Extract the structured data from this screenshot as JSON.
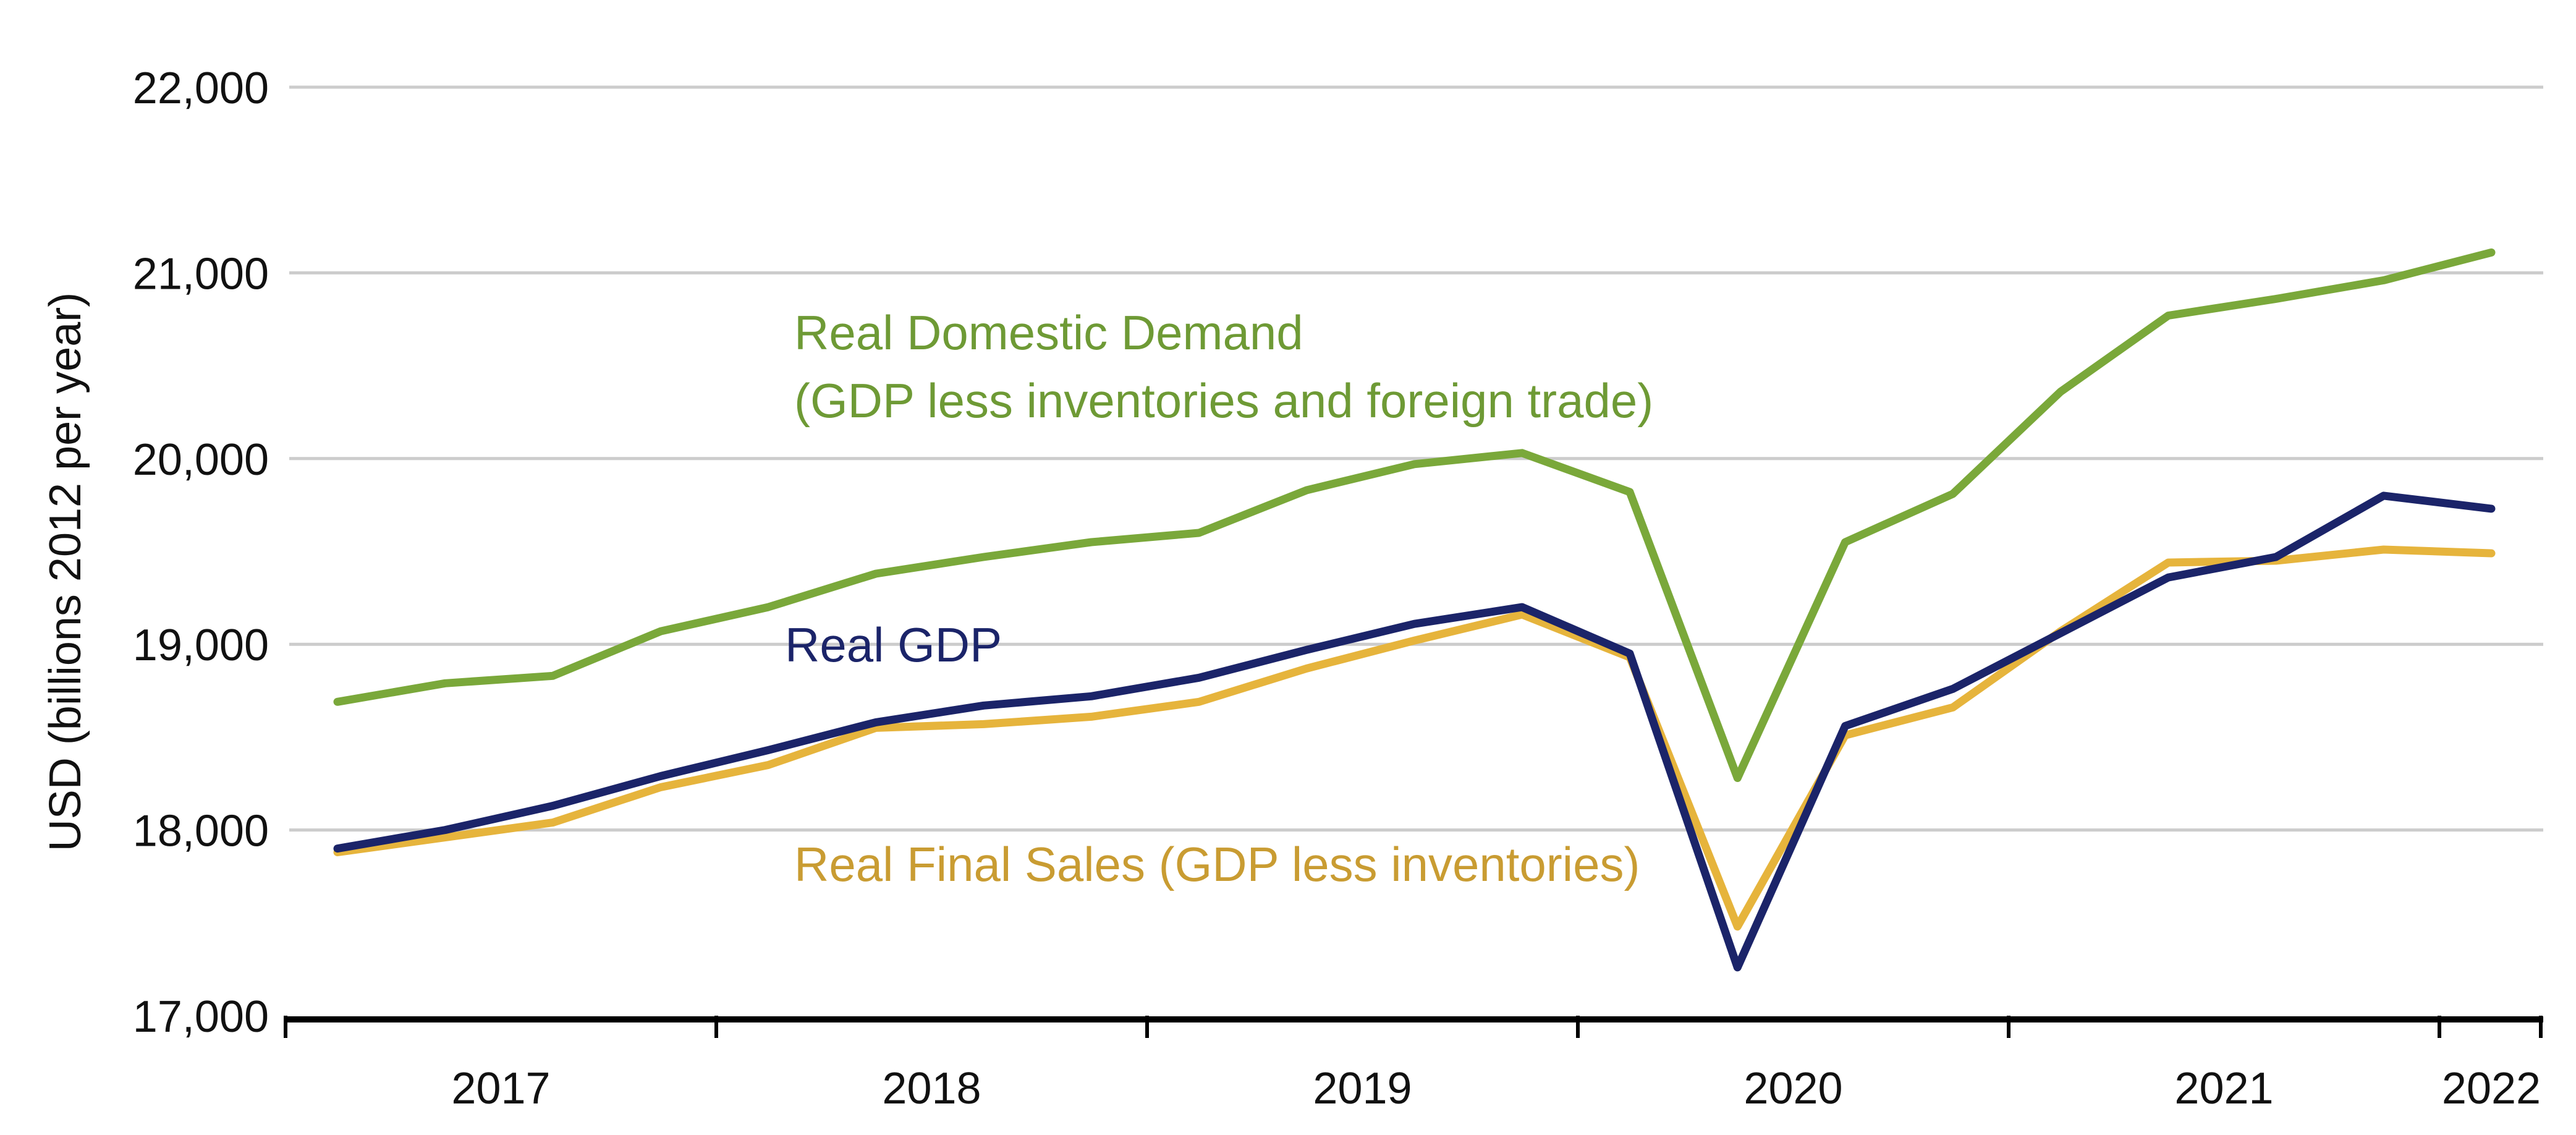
{
  "chart_data": {
    "type": "line",
    "title": "",
    "xlabel": "",
    "ylabel": "USD (billions 2012 per year)",
    "ylim": [
      17000,
      22000
    ],
    "yticks": [
      17000,
      18000,
      19000,
      20000,
      21000,
      22000
    ],
    "ytick_labels": [
      "17,000",
      "18,000",
      "19,000",
      "20,000",
      "21,000",
      "22,000"
    ],
    "grid": true,
    "x": [
      "2016Q4",
      "2017Q1",
      "2017Q2",
      "2017Q3",
      "2017Q4",
      "2018Q1",
      "2018Q2",
      "2018Q3",
      "2018Q4",
      "2019Q1",
      "2019Q2",
      "2019Q3",
      "2019Q4",
      "2020Q1",
      "2020Q2",
      "2020Q3",
      "2020Q4",
      "2021Q1",
      "2021Q2",
      "2021Q3",
      "2021Q4"
    ],
    "xtick_labels": [
      "2017",
      "2018",
      "2019",
      "2020",
      "2021",
      "2022"
    ],
    "series": [
      {
        "name": "Real Domestic Demand",
        "annotation": [
          "Real Domestic Demand",
          "(GDP less inventories and foreign trade)"
        ],
        "color": "#7aa83a",
        "text_color": "#6e9a35",
        "values": [
          18690,
          18790,
          18830,
          19070,
          19200,
          19380,
          19470,
          19550,
          19600,
          19830,
          19970,
          20030,
          19820,
          18280,
          19550,
          19810,
          20360,
          20770,
          20860,
          20960,
          21110
        ]
      },
      {
        "name": "Real GDP",
        "annotation": [
          "Real GDP"
        ],
        "color": "#1b2469",
        "text_color": "#1b2469",
        "values": [
          17900,
          18000,
          18130,
          18290,
          18430,
          18580,
          18670,
          18720,
          18820,
          18970,
          19110,
          19200,
          18950,
          17260,
          18560,
          18760,
          19060,
          19360,
          19470,
          19800,
          19730
        ]
      },
      {
        "name": "Real Final Sales",
        "annotation": [
          "Real Final Sales (GDP less inventories)"
        ],
        "color": "#e6b43c",
        "text_color": "#c99c32",
        "values": [
          17880,
          17960,
          18040,
          18230,
          18350,
          18550,
          18570,
          18610,
          18690,
          18870,
          19020,
          19160,
          18930,
          17480,
          18510,
          18660,
          19070,
          19440,
          19450,
          19510,
          19490
        ]
      }
    ]
  }
}
